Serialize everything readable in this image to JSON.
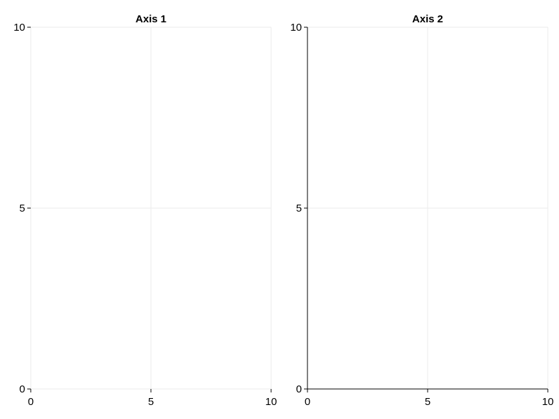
{
  "chart_data": [
    {
      "type": "line",
      "title": "Axis 1",
      "xlabel": "",
      "ylabel": "",
      "xlim": [
        0,
        10
      ],
      "ylim": [
        0,
        10
      ],
      "xticks": [
        "0",
        "5",
        "10"
      ],
      "yticks": [
        "0",
        "5",
        "10"
      ],
      "grid": true,
      "spines": "light",
      "series": []
    },
    {
      "type": "line",
      "title": "Axis 2",
      "xlabel": "",
      "ylabel": "",
      "xlim": [
        0,
        10
      ],
      "ylim": [
        0,
        10
      ],
      "xticks": [
        "0",
        "5",
        "10"
      ],
      "yticks": [
        "0",
        "5",
        "10"
      ],
      "grid": true,
      "spines": "dark-left-bottom",
      "series": []
    }
  ],
  "colors": {
    "grid": "#ebebeb",
    "light_spine": "#ebebeb",
    "dark_spine": "#000000",
    "tick": "#000000",
    "text": "#000000"
  }
}
